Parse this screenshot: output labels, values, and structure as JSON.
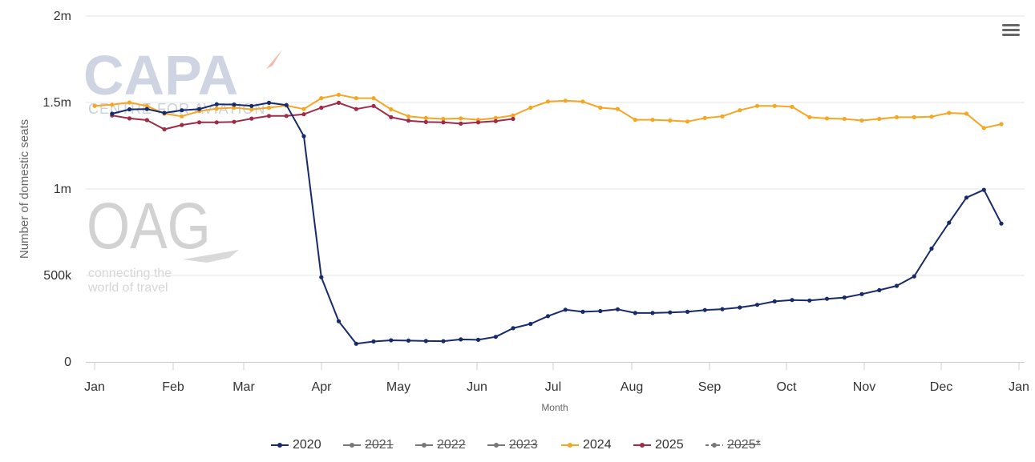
{
  "chart_data": {
    "type": "line",
    "ylabel": "Number of domestic seats",
    "xlabel": "Month",
    "ylim": [
      0,
      2000000
    ],
    "y_ticks": [
      {
        "value": 0,
        "label": "0"
      },
      {
        "value": 500000,
        "label": "500k"
      },
      {
        "value": 1000000,
        "label": "1m"
      },
      {
        "value": 1500000,
        "label": "1.5m"
      },
      {
        "value": 2000000,
        "label": "2m"
      }
    ],
    "x_ticks": [
      "Jan",
      "Feb",
      "Mar",
      "Apr",
      "May",
      "Jun",
      "Jul",
      "Aug",
      "Sep",
      "Oct",
      "Nov",
      "Dec",
      "Jan"
    ],
    "grid": "horizontal",
    "legend_position": "bottom-center",
    "series": [
      {
        "name": "2020",
        "color": "#172b6b",
        "visible": true,
        "start_week": 1,
        "values": [
          1435000,
          1460000,
          1462000,
          1440000,
          1455000,
          1462000,
          1490000,
          1488000,
          1480000,
          1498000,
          1485000,
          1305000,
          490000,
          235000,
          105000,
          118000,
          125000,
          123000,
          121000,
          120000,
          130000,
          128000,
          145000,
          195000,
          220000,
          265000,
          302000,
          290000,
          294000,
          304000,
          283000,
          283000,
          286000,
          290000,
          300000,
          305000,
          315000,
          330000,
          350000,
          358000,
          355000,
          365000,
          372000,
          392000,
          415000,
          440000,
          495000,
          655000,
          805000,
          950000,
          995000,
          800000
        ]
      },
      {
        "name": "2021",
        "color": "#777777",
        "visible": false,
        "values": []
      },
      {
        "name": "2022",
        "color": "#777777",
        "visible": false,
        "values": []
      },
      {
        "name": "2023",
        "color": "#777777",
        "visible": false,
        "values": []
      },
      {
        "name": "2024",
        "color": "#f5a623",
        "visible": true,
        "start_week": 0,
        "values": [
          1480000,
          1487000,
          1500000,
          1480000,
          1435000,
          1420000,
          1450000,
          1465000,
          1470000,
          1460000,
          1470000,
          1482000,
          1462000,
          1525000,
          1545000,
          1525000,
          1525000,
          1460000,
          1420000,
          1410000,
          1405000,
          1408000,
          1400000,
          1410000,
          1425000,
          1470000,
          1505000,
          1510000,
          1505000,
          1470000,
          1462000,
          1400000,
          1400000,
          1396000,
          1390000,
          1410000,
          1420000,
          1455000,
          1480000,
          1480000,
          1475000,
          1415000,
          1408000,
          1405000,
          1396000,
          1405000,
          1415000,
          1415000,
          1418000,
          1440000,
          1435000,
          1353000,
          1375000
        ]
      },
      {
        "name": "2025",
        "color": "#a02b46",
        "visible": true,
        "start_week": 1,
        "values": [
          1425000,
          1408000,
          1398000,
          1345000,
          1370000,
          1385000,
          1385000,
          1388000,
          1407000,
          1422000,
          1422000,
          1432000,
          1470000,
          1498000,
          1462000,
          1480000,
          1415000,
          1395000,
          1387000,
          1385000,
          1378000,
          1385000,
          1392000,
          1405000
        ]
      },
      {
        "name": "2025*",
        "color": "#777777",
        "visible": false,
        "dashed": true,
        "values": []
      }
    ]
  },
  "watermark": {
    "capa_text": "CAPA",
    "capa_subtext": "CENTRE FOR AVIATION",
    "oag_text": "OAG",
    "oag_tagline_1": "connecting the",
    "oag_tagline_2": "world of travel"
  },
  "menu": {
    "icon": "hamburger-menu-icon"
  }
}
